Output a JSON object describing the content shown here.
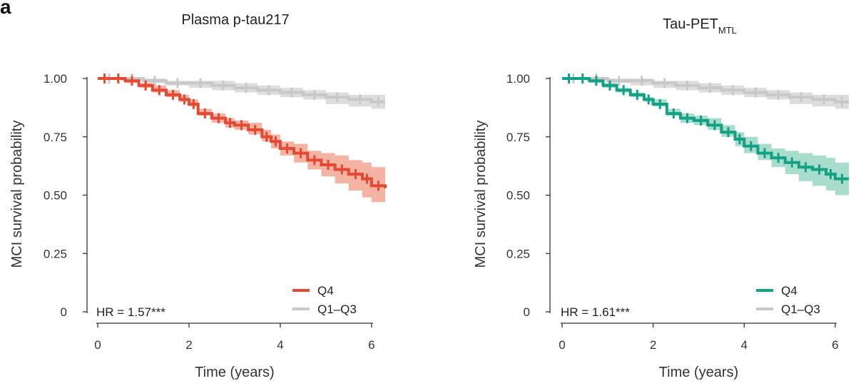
{
  "figure": {
    "panel_letter": "a"
  },
  "chart_data": [
    {
      "type": "line",
      "subtype": "kaplan-meier",
      "title": "Plasma p-tau217",
      "title_sub": "",
      "xlabel": "Time (years)",
      "ylabel": "MCI survival probability",
      "xlim": [
        -0.1,
        6.3
      ],
      "ylim": [
        0,
        1.02
      ],
      "x_ticks": [
        0,
        2,
        4,
        6
      ],
      "x_tick_labels": [
        "0",
        "2",
        "4",
        "6"
      ],
      "y_ticks": [
        0,
        0.25,
        0.5,
        0.75,
        1.0
      ],
      "y_tick_labels": [
        "0",
        "0.25",
        "0.50",
        "0.75",
        "1.00"
      ],
      "annotation": "HR = 1.57***",
      "legend_position": "bottom-right",
      "series": [
        {
          "name": "Q4",
          "color": "#e34a33",
          "band_color": "#f4b3a3",
          "x": [
            0.0,
            0.3,
            0.6,
            0.9,
            1.2,
            1.5,
            1.8,
            2.0,
            2.2,
            2.5,
            2.8,
            3.0,
            3.3,
            3.6,
            3.8,
            4.0,
            4.3,
            4.6,
            4.9,
            5.2,
            5.5,
            5.8,
            6.0,
            6.3
          ],
          "y": [
            1.0,
            1.0,
            0.99,
            0.97,
            0.95,
            0.93,
            0.91,
            0.89,
            0.85,
            0.83,
            0.81,
            0.8,
            0.78,
            0.75,
            0.73,
            0.7,
            0.68,
            0.65,
            0.63,
            0.61,
            0.59,
            0.57,
            0.54,
            0.53
          ],
          "lower": [
            1.0,
            1.0,
            0.98,
            0.96,
            0.94,
            0.92,
            0.9,
            0.88,
            0.84,
            0.81,
            0.79,
            0.78,
            0.76,
            0.73,
            0.7,
            0.67,
            0.64,
            0.61,
            0.58,
            0.55,
            0.52,
            0.49,
            0.47,
            0.45
          ],
          "upper": [
            1.0,
            1.0,
            1.0,
            0.98,
            0.97,
            0.95,
            0.93,
            0.91,
            0.87,
            0.85,
            0.83,
            0.82,
            0.81,
            0.78,
            0.76,
            0.73,
            0.72,
            0.69,
            0.68,
            0.67,
            0.65,
            0.64,
            0.62,
            0.62
          ]
        },
        {
          "name": "Q1–Q3",
          "color": "#c8c8c8",
          "band_color": "#dddddd",
          "x": [
            0.0,
            0.5,
            1.0,
            1.5,
            2.0,
            2.5,
            3.0,
            3.5,
            4.0,
            4.5,
            5.0,
            5.5,
            6.0,
            6.3
          ],
          "y": [
            1.0,
            1.0,
            0.99,
            0.98,
            0.98,
            0.97,
            0.96,
            0.95,
            0.94,
            0.93,
            0.92,
            0.91,
            0.9,
            0.9
          ],
          "lower": [
            1.0,
            0.99,
            0.98,
            0.97,
            0.96,
            0.95,
            0.94,
            0.93,
            0.92,
            0.91,
            0.89,
            0.88,
            0.87,
            0.87
          ],
          "upper": [
            1.0,
            1.0,
            1.0,
            0.99,
            0.99,
            0.99,
            0.98,
            0.97,
            0.96,
            0.95,
            0.94,
            0.93,
            0.93,
            0.93
          ]
        }
      ]
    },
    {
      "type": "line",
      "subtype": "kaplan-meier",
      "title": "Tau-PET",
      "title_sub": "MTL",
      "xlabel": "Time (years)",
      "ylabel": "MCI survival probability",
      "xlim": [
        -0.1,
        6.3
      ],
      "ylim": [
        0,
        1.02
      ],
      "x_ticks": [
        0,
        2,
        4,
        6
      ],
      "x_tick_labels": [
        "0",
        "2",
        "4",
        "6"
      ],
      "y_ticks": [
        0,
        0.25,
        0.5,
        0.75,
        1.0
      ],
      "y_tick_labels": [
        "0",
        "0.25",
        "0.50",
        "0.75",
        "1.00"
      ],
      "annotation": "HR = 1.61***",
      "legend_position": "bottom-right",
      "series": [
        {
          "name": "Q4",
          "color": "#14a085",
          "band_color": "#a8dccd",
          "x": [
            0.0,
            0.3,
            0.6,
            0.9,
            1.2,
            1.5,
            1.8,
            2.0,
            2.3,
            2.6,
            2.9,
            3.2,
            3.5,
            3.8,
            4.0,
            4.3,
            4.6,
            4.9,
            5.2,
            5.5,
            5.8,
            6.0,
            6.3
          ],
          "y": [
            1.0,
            1.0,
            0.99,
            0.97,
            0.95,
            0.93,
            0.91,
            0.89,
            0.85,
            0.83,
            0.82,
            0.8,
            0.77,
            0.74,
            0.71,
            0.68,
            0.66,
            0.64,
            0.62,
            0.61,
            0.59,
            0.57,
            0.57
          ],
          "lower": [
            1.0,
            1.0,
            0.98,
            0.96,
            0.94,
            0.92,
            0.9,
            0.88,
            0.84,
            0.81,
            0.8,
            0.78,
            0.75,
            0.71,
            0.68,
            0.65,
            0.62,
            0.59,
            0.56,
            0.54,
            0.52,
            0.5,
            0.5
          ],
          "upper": [
            1.0,
            1.0,
            1.0,
            0.98,
            0.96,
            0.94,
            0.92,
            0.91,
            0.87,
            0.85,
            0.84,
            0.83,
            0.8,
            0.77,
            0.75,
            0.72,
            0.7,
            0.69,
            0.68,
            0.67,
            0.66,
            0.64,
            0.64
          ]
        },
        {
          "name": "Q1–Q3",
          "color": "#c8c8c8",
          "band_color": "#dddddd",
          "x": [
            0.0,
            0.5,
            1.0,
            1.5,
            2.0,
            2.5,
            3.0,
            3.5,
            4.0,
            4.5,
            5.0,
            5.5,
            6.0,
            6.3
          ],
          "y": [
            1.0,
            1.0,
            0.99,
            0.99,
            0.98,
            0.97,
            0.96,
            0.95,
            0.94,
            0.93,
            0.92,
            0.91,
            0.9,
            0.9
          ],
          "lower": [
            1.0,
            0.99,
            0.98,
            0.97,
            0.96,
            0.95,
            0.94,
            0.93,
            0.92,
            0.91,
            0.89,
            0.88,
            0.87,
            0.87
          ],
          "upper": [
            1.0,
            1.0,
            1.0,
            1.0,
            0.99,
            0.99,
            0.98,
            0.97,
            0.96,
            0.95,
            0.94,
            0.93,
            0.93,
            0.93
          ]
        }
      ]
    }
  ]
}
